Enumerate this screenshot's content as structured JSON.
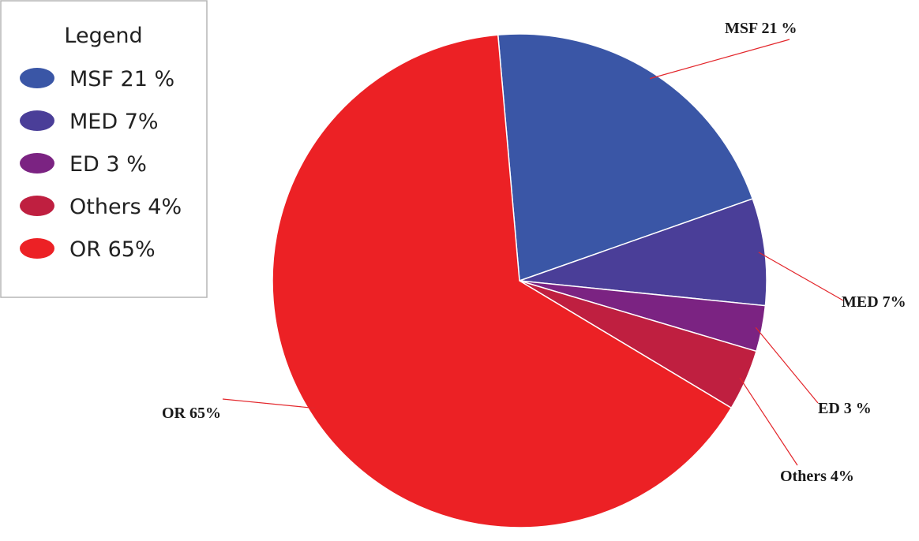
{
  "chart_data": {
    "type": "pie",
    "legend": {
      "title": "Legend",
      "placement": "top-left"
    },
    "slices": [
      {
        "label": "MSF 21 %",
        "value": 21,
        "color": "#3a56a6"
      },
      {
        "label": "MED 7%",
        "value": 7,
        "color": "#4a3e98"
      },
      {
        "label": "ED 3 %",
        "value": 3,
        "color": "#7b2382"
      },
      {
        "label": "Others 4%",
        "value": 4,
        "color": "#bf1f40"
      },
      {
        "label": "OR 65%",
        "value": 65,
        "color": "#ec2125"
      }
    ]
  }
}
